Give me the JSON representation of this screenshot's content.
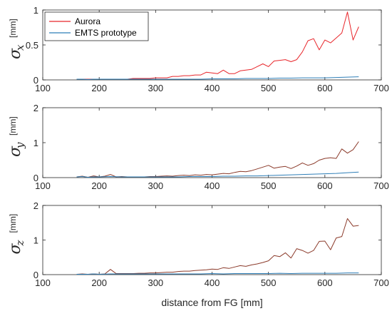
{
  "chart_data": [
    {
      "type": "line",
      "panel": "x",
      "ylabel_symbol": "σ",
      "ylabel_subscript": "x",
      "ylabel_unit": "[mm]",
      "xlabel": "",
      "xlim": [
        100,
        700
      ],
      "ylim": [
        0,
        1
      ],
      "xticks": [
        100,
        200,
        300,
        400,
        500,
        600,
        700
      ],
      "yticks": [
        0,
        0.5,
        1
      ],
      "ytick_labels": [
        "0",
        "0.5",
        "1"
      ],
      "grid": false,
      "legend": {
        "placement": "top-left",
        "entries": [
          "Aurora",
          "EMTS prototype"
        ]
      },
      "series": [
        {
          "name": "Aurora",
          "color": "#e8262b",
          "x": [
            160,
            170,
            180,
            190,
            200,
            210,
            220,
            230,
            240,
            250,
            260,
            270,
            280,
            290,
            300,
            310,
            320,
            330,
            340,
            350,
            360,
            370,
            380,
            390,
            400,
            410,
            420,
            430,
            440,
            450,
            460,
            470,
            480,
            490,
            500,
            510,
            520,
            530,
            540,
            550,
            560,
            570,
            580,
            590,
            600,
            610,
            620,
            630,
            640,
            650,
            660
          ],
          "y": [
            0.01,
            0.01,
            0.01,
            0.01,
            0.01,
            0.01,
            0.01,
            0.01,
            0.01,
            0.01,
            0.02,
            0.02,
            0.02,
            0.02,
            0.03,
            0.03,
            0.03,
            0.05,
            0.05,
            0.06,
            0.06,
            0.07,
            0.07,
            0.11,
            0.1,
            0.09,
            0.14,
            0.09,
            0.09,
            0.13,
            0.14,
            0.15,
            0.19,
            0.23,
            0.19,
            0.27,
            0.28,
            0.29,
            0.26,
            0.29,
            0.4,
            0.56,
            0.59,
            0.43,
            0.57,
            0.53,
            0.6,
            0.67,
            0.97,
            0.57,
            0.76
          ]
        },
        {
          "name": "EMTS prototype",
          "color": "#2f7fb8",
          "x": [
            160,
            170,
            180,
            190,
            200,
            220,
            240,
            260,
            280,
            300,
            320,
            340,
            360,
            380,
            400,
            420,
            440,
            460,
            480,
            500,
            520,
            540,
            560,
            580,
            600,
            620,
            640,
            660
          ],
          "y": [
            0.01,
            0.01,
            0.005,
            0.01,
            0.01,
            0.01,
            0.01,
            0.01,
            0.01,
            0.01,
            0.01,
            0.01,
            0.01,
            0.01,
            0.015,
            0.015,
            0.015,
            0.02,
            0.02,
            0.02,
            0.025,
            0.025,
            0.03,
            0.03,
            0.03,
            0.035,
            0.04,
            0.045
          ]
        }
      ]
    },
    {
      "type": "line",
      "panel": "y",
      "ylabel_symbol": "σ",
      "ylabel_subscript": "y",
      "ylabel_unit": "[mm]",
      "xlabel": "",
      "xlim": [
        100,
        700
      ],
      "ylim": [
        0,
        2
      ],
      "xticks": [
        100,
        200,
        300,
        400,
        500,
        600,
        700
      ],
      "yticks": [
        0,
        1,
        2
      ],
      "ytick_labels": [
        "0",
        "1",
        "2"
      ],
      "grid": false,
      "series": [
        {
          "name": "Aurora",
          "color": "#8b3a2a",
          "x": [
            160,
            170,
            180,
            190,
            200,
            210,
            220,
            230,
            240,
            250,
            260,
            270,
            280,
            290,
            300,
            310,
            320,
            330,
            340,
            350,
            360,
            370,
            380,
            390,
            400,
            410,
            420,
            430,
            440,
            450,
            460,
            470,
            480,
            490,
            500,
            510,
            520,
            530,
            540,
            550,
            560,
            570,
            580,
            590,
            600,
            610,
            620,
            630,
            640,
            650,
            660
          ],
          "y": [
            0.02,
            0.04,
            0.01,
            0.05,
            0.02,
            0.04,
            0.09,
            0.02,
            0.03,
            0.02,
            0.02,
            0.02,
            0.02,
            0.03,
            0.03,
            0.04,
            0.05,
            0.04,
            0.06,
            0.07,
            0.06,
            0.08,
            0.07,
            0.09,
            0.08,
            0.1,
            0.12,
            0.11,
            0.15,
            0.18,
            0.17,
            0.2,
            0.25,
            0.3,
            0.35,
            0.27,
            0.3,
            0.32,
            0.26,
            0.33,
            0.42,
            0.35,
            0.4,
            0.5,
            0.55,
            0.57,
            0.55,
            0.82,
            0.7,
            0.8,
            1.03
          ]
        },
        {
          "name": "EMTS prototype",
          "color": "#2f7fb8",
          "x": [
            160,
            170,
            180,
            190,
            200,
            220,
            240,
            260,
            280,
            300,
            320,
            340,
            360,
            380,
            400,
            420,
            440,
            460,
            480,
            500,
            520,
            540,
            560,
            580,
            600,
            620,
            640,
            660
          ],
          "y": [
            0.02,
            0.03,
            0.01,
            0.02,
            0.02,
            0.03,
            0.02,
            0.02,
            0.02,
            0.02,
            0.02,
            0.02,
            0.03,
            0.03,
            0.03,
            0.04,
            0.04,
            0.05,
            0.05,
            0.06,
            0.07,
            0.08,
            0.09,
            0.1,
            0.11,
            0.12,
            0.14,
            0.16
          ]
        }
      ]
    },
    {
      "type": "line",
      "panel": "z",
      "ylabel_symbol": "σ",
      "ylabel_subscript": "z",
      "ylabel_unit": "[mm]",
      "xlabel": "distance from FG [mm]",
      "xlim": [
        100,
        700
      ],
      "ylim": [
        0,
        2
      ],
      "xticks": [
        100,
        200,
        300,
        400,
        500,
        600,
        700
      ],
      "yticks": [
        0,
        1,
        2
      ],
      "ytick_labels": [
        "0",
        "1",
        "2"
      ],
      "grid": false,
      "series": [
        {
          "name": "Aurora",
          "color": "#8b3a2a",
          "x": [
            160,
            170,
            180,
            190,
            200,
            210,
            220,
            230,
            240,
            250,
            260,
            270,
            280,
            290,
            300,
            310,
            320,
            330,
            340,
            350,
            360,
            370,
            380,
            390,
            400,
            410,
            420,
            430,
            440,
            450,
            460,
            470,
            480,
            490,
            500,
            510,
            520,
            530,
            540,
            550,
            560,
            570,
            580,
            590,
            600,
            610,
            620,
            630,
            640,
            650,
            660
          ],
          "y": [
            0.01,
            0.02,
            0.01,
            0.02,
            0.01,
            0.02,
            0.15,
            0.03,
            0.03,
            0.03,
            0.03,
            0.04,
            0.04,
            0.05,
            0.05,
            0.06,
            0.07,
            0.07,
            0.09,
            0.1,
            0.1,
            0.12,
            0.13,
            0.14,
            0.16,
            0.15,
            0.2,
            0.18,
            0.22,
            0.26,
            0.24,
            0.28,
            0.31,
            0.35,
            0.4,
            0.55,
            0.52,
            0.63,
            0.48,
            0.75,
            0.7,
            0.62,
            0.7,
            0.96,
            0.97,
            0.72,
            1.06,
            1.1,
            1.62,
            1.4,
            1.42
          ]
        },
        {
          "name": "EMTS prototype",
          "color": "#2f7fb8",
          "x": [
            160,
            170,
            180,
            190,
            200,
            220,
            240,
            260,
            280,
            300,
            320,
            340,
            360,
            380,
            400,
            420,
            440,
            460,
            480,
            500,
            520,
            540,
            560,
            580,
            600,
            620,
            640,
            660
          ],
          "y": [
            0.01,
            0.01,
            0.01,
            0.02,
            0.01,
            0.02,
            0.02,
            0.02,
            0.02,
            0.02,
            0.02,
            0.02,
            0.02,
            0.02,
            0.03,
            0.02,
            0.03,
            0.03,
            0.03,
            0.03,
            0.04,
            0.03,
            0.04,
            0.04,
            0.04,
            0.04,
            0.05,
            0.05
          ]
        }
      ]
    }
  ]
}
